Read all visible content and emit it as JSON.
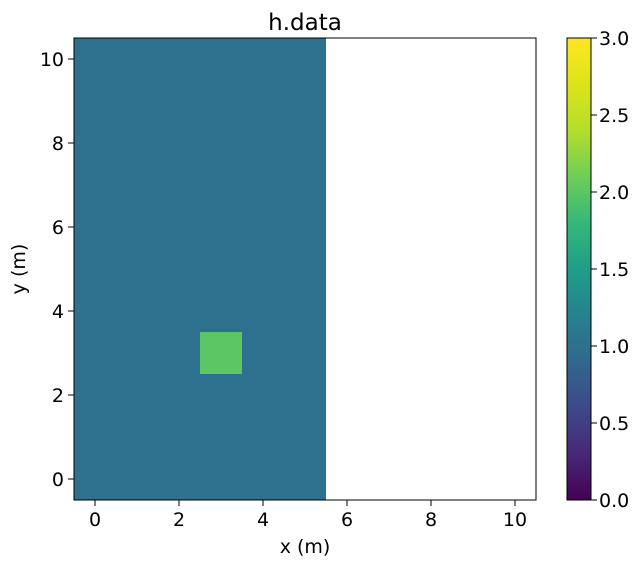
{
  "chart_data": {
    "type": "heatmap",
    "title": "h.data",
    "xlabel": "x (m)",
    "ylabel": "y (m)",
    "xlim": [
      -0.5,
      10.5
    ],
    "ylim": [
      -0.5,
      10.5
    ],
    "xticks": [
      0,
      2,
      4,
      6,
      8,
      10
    ],
    "yticks": [
      0,
      2,
      4,
      6,
      8,
      10
    ],
    "grid": false,
    "colormap": "viridis",
    "color_range": [
      0.0,
      3.0
    ],
    "colorbar_ticks": [
      "0.0",
      "0.5",
      "1.0",
      "1.5",
      "2.0",
      "2.5",
      "3.0"
    ],
    "regions": [
      {
        "x_range": [
          -0.5,
          5.5
        ],
        "y_range": [
          -0.5,
          10.5
        ],
        "value": 1.0
      },
      {
        "x_range": [
          2.5,
          3.5
        ],
        "y_range": [
          2.5,
          3.5
        ],
        "value": 2.0
      }
    ],
    "empty_region": {
      "x_range": [
        5.5,
        10.5
      ],
      "y_range": [
        -0.5,
        10.5
      ]
    }
  }
}
